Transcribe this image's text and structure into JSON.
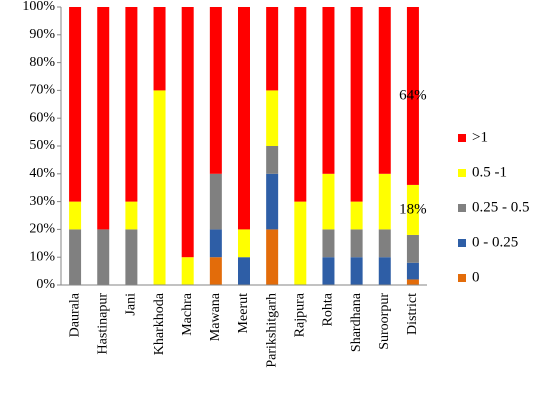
{
  "chart_data": {
    "type": "stacked_bar",
    "categories": [
      "Daurala",
      "Hastinapur",
      "Jani",
      "Kharkhoda",
      "Machra",
      "Mawana",
      "Meerut",
      "Parikshitgarh",
      "Rajpura",
      "Rohta",
      "Shardhana",
      "Suroorpur",
      "District"
    ],
    "series": [
      {
        "name": "0",
        "color": "#e36c0a",
        "values": [
          0,
          0,
          0,
          0,
          0,
          10,
          0,
          20,
          0,
          0,
          0,
          0,
          2
        ]
      },
      {
        "name": "0 - 0.25",
        "color": "#2e5ea6",
        "values": [
          0,
          0,
          0,
          0,
          0,
          10,
          10,
          20,
          0,
          10,
          10,
          10,
          6
        ]
      },
      {
        "name": "0.25 - 0.5",
        "color": "#808080",
        "values": [
          20,
          20,
          20,
          0,
          0,
          20,
          0,
          10,
          0,
          10,
          10,
          10,
          10
        ]
      },
      {
        "name": "0.5 -1",
        "color": "#ffff00",
        "values": [
          10,
          0,
          10,
          70,
          10,
          0,
          10,
          20,
          30,
          20,
          10,
          20,
          18
        ],
        "value_labels": [
          null,
          null,
          null,
          null,
          null,
          null,
          null,
          null,
          null,
          null,
          null,
          null,
          "18%"
        ]
      },
      {
        "name": ">1",
        "color": "#ff0000",
        "values": [
          70,
          80,
          70,
          30,
          90,
          60,
          80,
          30,
          70,
          60,
          70,
          60,
          64
        ],
        "value_labels": [
          null,
          null,
          null,
          null,
          null,
          null,
          null,
          null,
          null,
          null,
          null,
          null,
          "64%"
        ]
      }
    ],
    "ylim": [
      0,
      100
    ],
    "yticks": [
      {
        "value": 0,
        "label": "0%"
      },
      {
        "value": 10,
        "label": "10%"
      },
      {
        "value": 20,
        "label": "20%"
      },
      {
        "value": 30,
        "label": "30%"
      },
      {
        "value": 40,
        "label": "40%"
      },
      {
        "value": 50,
        "label": "50%"
      },
      {
        "value": 60,
        "label": "60%"
      },
      {
        "value": 70,
        "label": "70%"
      },
      {
        "value": 80,
        "label": "80%"
      },
      {
        "value": 90,
        "label": "90%"
      },
      {
        "value": 100,
        "label": "100%"
      }
    ],
    "grid": false,
    "legend": "right"
  }
}
